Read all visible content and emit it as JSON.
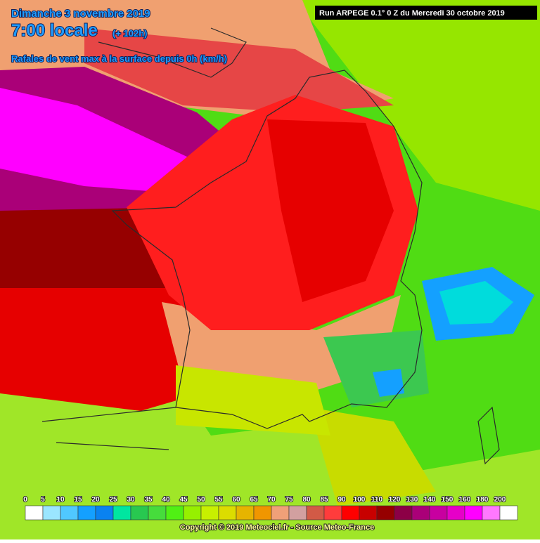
{
  "header": {
    "date": "Dimanche 3 novembre 2019",
    "time": "7:00 locale",
    "lead": "(+ 102h)",
    "subtitle": "Rafales de vent max à la surface depuis 0h (km/h)",
    "run": "Run ARPEGE 0.1° 0 Z du Mercredi 30 octobre 2019"
  },
  "legend": {
    "items": [
      {
        "value": 0,
        "color": "#ffffff"
      },
      {
        "value": 5,
        "color": "#9be6ff"
      },
      {
        "value": 10,
        "color": "#50c8ff"
      },
      {
        "value": 15,
        "color": "#14a0ff"
      },
      {
        "value": 20,
        "color": "#0a82f0"
      },
      {
        "value": 25,
        "color": "#00e6a0"
      },
      {
        "value": 30,
        "color": "#28c850"
      },
      {
        "value": 35,
        "color": "#46dc3c"
      },
      {
        "value": 40,
        "color": "#50f014"
      },
      {
        "value": 45,
        "color": "#96f000"
      },
      {
        "value": 50,
        "color": "#c8f000"
      },
      {
        "value": 55,
        "color": "#dcdc00"
      },
      {
        "value": 60,
        "color": "#e6b400"
      },
      {
        "value": 65,
        "color": "#f09600"
      },
      {
        "value": 70,
        "color": "#f0a078"
      },
      {
        "value": 75,
        "color": "#d2a0a0"
      },
      {
        "value": 80,
        "color": "#d25a46"
      },
      {
        "value": 85,
        "color": "#ff3c3c"
      },
      {
        "value": 90,
        "color": "#ff0000"
      },
      {
        "value": 100,
        "color": "#c80000"
      },
      {
        "value": 110,
        "color": "#960000"
      },
      {
        "value": 120,
        "color": "#8c0046"
      },
      {
        "value": 130,
        "color": "#aa0078"
      },
      {
        "value": 140,
        "color": "#c800a0"
      },
      {
        "value": 150,
        "color": "#e600c8"
      },
      {
        "value": 160,
        "color": "#ff00ff"
      },
      {
        "value": 180,
        "color": "#ff78ff"
      },
      {
        "value": 200,
        "color": "#ffffff"
      }
    ]
  },
  "footer": {
    "copyright": "Copyright © 2019 Meteociel.fr - Source Meteo-France"
  }
}
